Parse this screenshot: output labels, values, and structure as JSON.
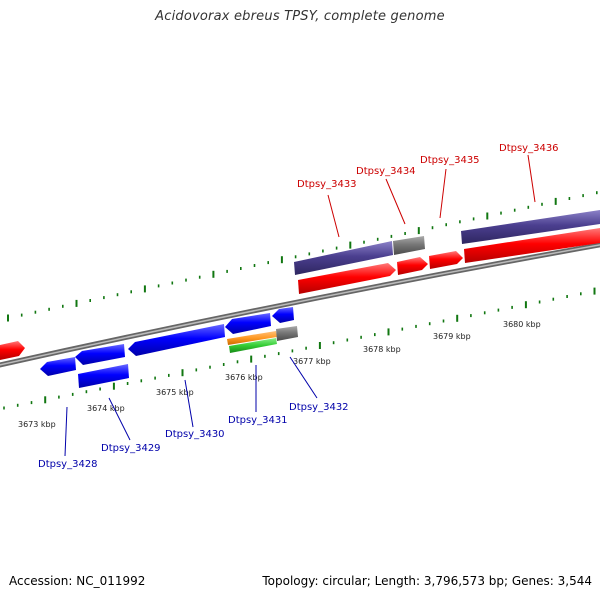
{
  "title": "Acidovorax ebreus TPSY, complete genome",
  "accession": "Accession: NC_011992",
  "stats": "Topology: circular; Length: 3,796,573 bp; Genes: 3,544",
  "colors": {
    "forward_gene": "#ff0000",
    "reverse_gene": "#0000ff",
    "cog_track": "#4b3f8f",
    "rna_gray": "#777777",
    "tick_green": "#117711",
    "backbone": "#888888",
    "forward_label": "#cc0000",
    "reverse_label": "#0000aa",
    "orange_feature": "#ff9922",
    "green_feature": "#33cc33"
  },
  "ruler_labels": [
    {
      "kbp": 3673,
      "label": "3673 kbp"
    },
    {
      "kbp": 3674,
      "label": "3674 kbp"
    },
    {
      "kbp": 3675,
      "label": "3675 kbp"
    },
    {
      "kbp": 3676,
      "label": "3676 kbp"
    },
    {
      "kbp": 3677,
      "label": "3677 kbp"
    },
    {
      "kbp": 3678,
      "label": "3678 kbp"
    },
    {
      "kbp": 3679,
      "label": "3679 kbp"
    },
    {
      "kbp": 3680,
      "label": "3680 kbp"
    }
  ],
  "forward_genes": [
    {
      "name": "Dtpsy_3433"
    },
    {
      "name": "Dtpsy_3434"
    },
    {
      "name": "Dtpsy_3435"
    },
    {
      "name": "Dtpsy_3436"
    }
  ],
  "reverse_genes": [
    {
      "name": "Dtpsy_3428"
    },
    {
      "name": "Dtpsy_3429"
    },
    {
      "name": "Dtpsy_3430"
    },
    {
      "name": "Dtpsy_3431"
    },
    {
      "name": "Dtpsy_3432"
    }
  ]
}
